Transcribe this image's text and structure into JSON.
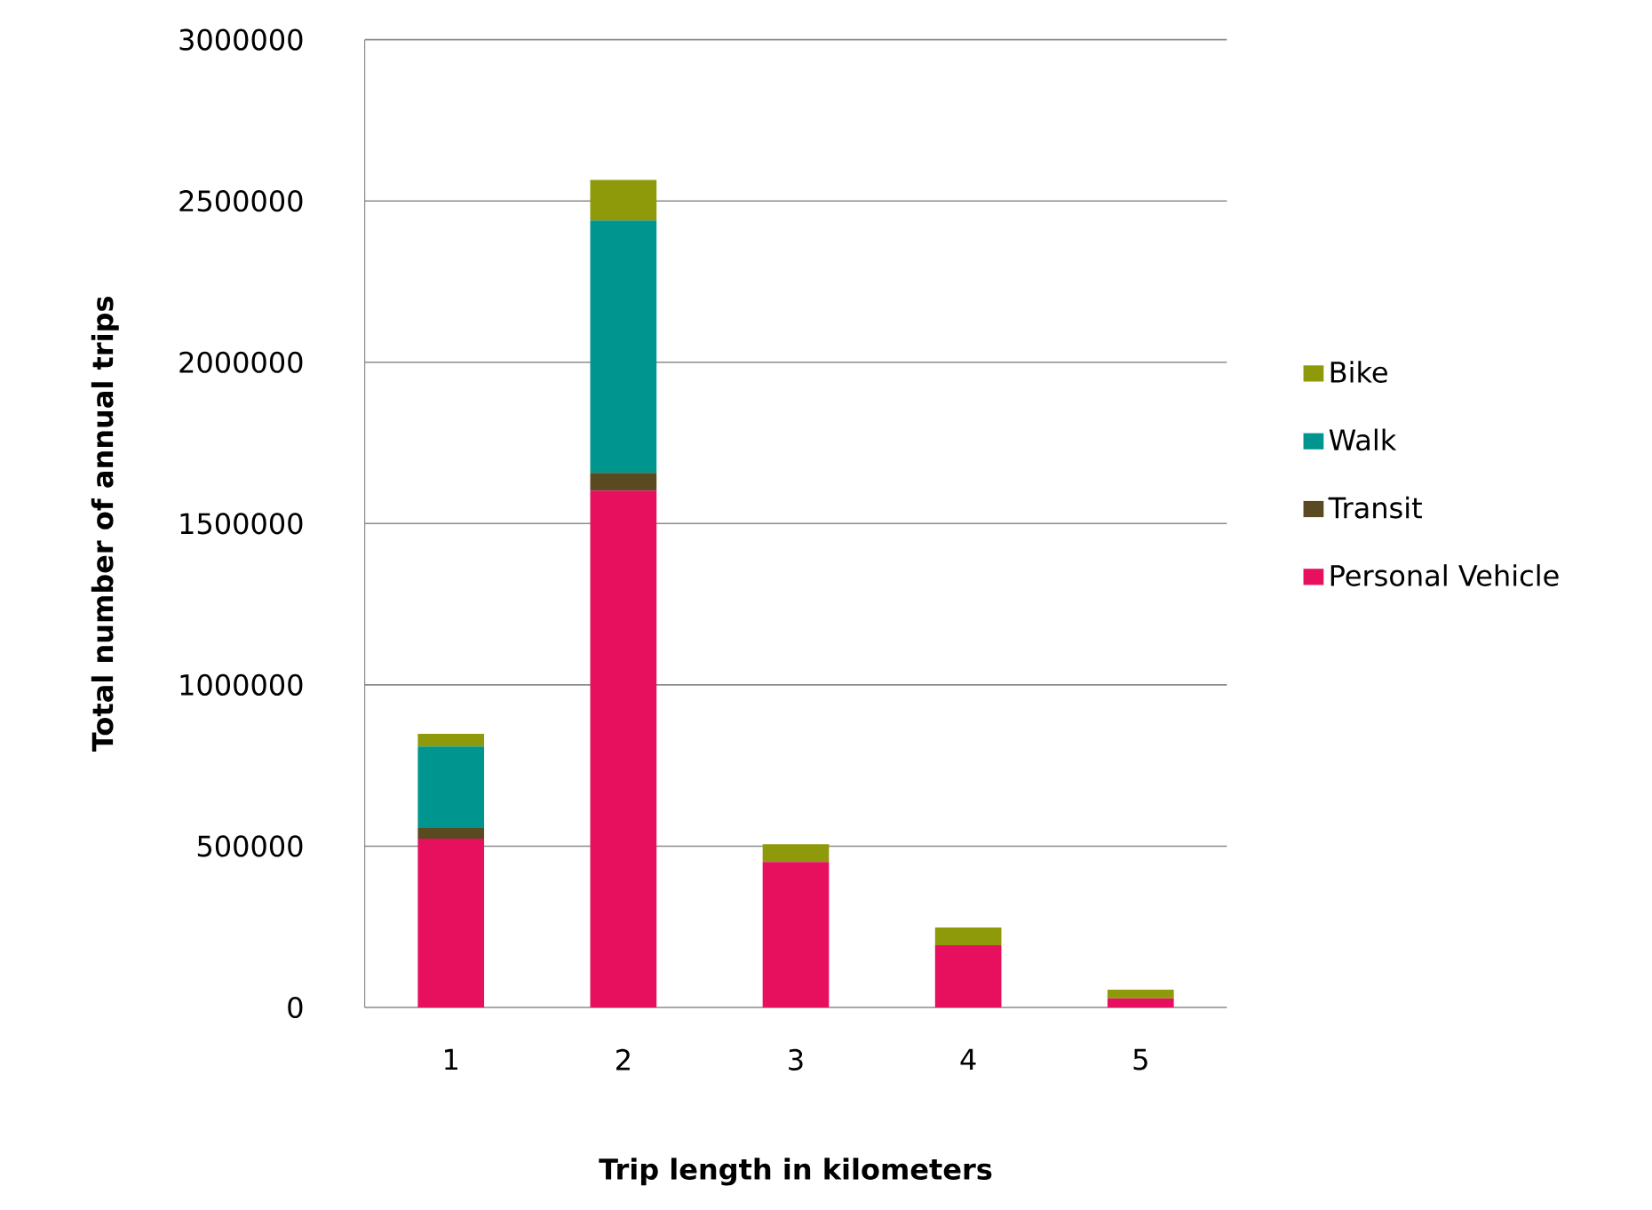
{
  "chart_data": {
    "type": "bar",
    "stacked": true,
    "xlabel": "Trip length in kilometers",
    "ylabel": "Total number of annual trips",
    "categories": [
      "1",
      "2",
      "3",
      "4",
      "5"
    ],
    "series": [
      {
        "name": "Personal Vehicle",
        "color": "#e6105f",
        "values": [
          523000,
          1602000,
          451000,
          193000,
          28000
        ]
      },
      {
        "name": "Transit",
        "color": "#5a4a22",
        "values": [
          33000,
          55000,
          0,
          0,
          0
        ]
      },
      {
        "name": "Walk",
        "color": "#00968f",
        "values": [
          253000,
          782000,
          0,
          0,
          0
        ]
      },
      {
        "name": "Bike",
        "color": "#8f9a0a",
        "values": [
          39000,
          126000,
          55000,
          55000,
          27000
        ]
      }
    ],
    "ylim": [
      0,
      3000000
    ],
    "yticks": [
      0,
      500000,
      1000000,
      1500000,
      2000000,
      2500000,
      3000000
    ],
    "grid": "y",
    "legend": "right"
  }
}
